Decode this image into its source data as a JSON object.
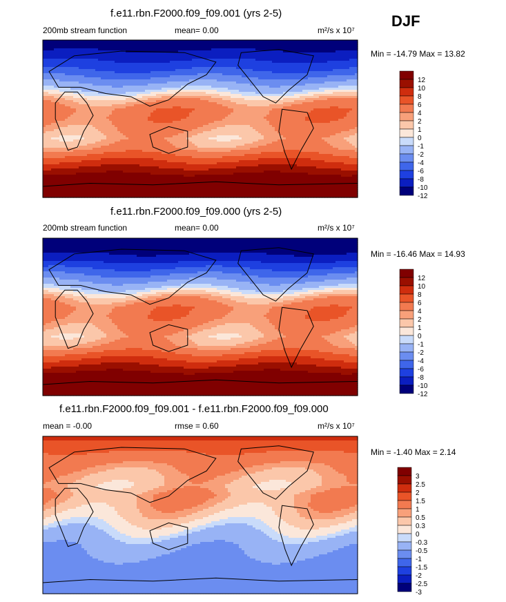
{
  "season": "DJF",
  "palettes": {
    "abs": [
      "#00007a",
      "#0b1ec0",
      "#1e40e0",
      "#3f66ea",
      "#6b8df0",
      "#98b3f5",
      "#c9dbfa",
      "#fbe7da",
      "#fbc7aa",
      "#f8a07a",
      "#f27a50",
      "#e95428",
      "#cf2d0e",
      "#9a0f00",
      "#800000"
    ],
    "diff": [
      "#00007a",
      "#0b1ec0",
      "#1e40e0",
      "#3f66ea",
      "#6b8df0",
      "#98b3f5",
      "#c9dbfa",
      "#fbe7da",
      "#fbc7aa",
      "#f8a07a",
      "#f27a50",
      "#e95428",
      "#cf2d0e",
      "#9a0f00",
      "#800000"
    ]
  },
  "chart_data": [
    {
      "type": "heatmap",
      "title": "f.e11.rbn.F2000.f09_f09.001 (yrs 2-5)",
      "left_label": "200mb stream function",
      "mean_text": "mean=   0.00",
      "units": "m²/s x 10⁷",
      "minmax_text": "Min = -14.79 Max =  13.82",
      "colorbar_labels": [
        "12",
        "10",
        "8",
        "6",
        "4",
        "2",
        "1",
        "0",
        "-1",
        "-2",
        "-4",
        "-6",
        "-8",
        "-10",
        "-12"
      ],
      "lat_profile": [
        -13,
        -12,
        -10,
        -8,
        -5,
        -2,
        1,
        3,
        3,
        2,
        1,
        2,
        5,
        8,
        11,
        13,
        14
      ]
    },
    {
      "type": "heatmap",
      "title": "f.e11.rbn.F2000.f09_f09.000 (yrs 2-5)",
      "left_label": "200mb stream function",
      "mean_text": "mean=   0.00",
      "units": "m²/s x 10⁷",
      "minmax_text": "Min = -16.46 Max =  14.93",
      "colorbar_labels": [
        "12",
        "10",
        "8",
        "6",
        "4",
        "2",
        "1",
        "0",
        "-1",
        "-2",
        "-4",
        "-6",
        "-8",
        "-10",
        "-12"
      ],
      "lat_profile": [
        -14,
        -13,
        -11,
        -8,
        -5,
        -2,
        1,
        3,
        3,
        2,
        1,
        2,
        5,
        8,
        11,
        13,
        15
      ]
    },
    {
      "type": "heatmap",
      "title": "f.e11.rbn.F2000.f09_f09.001 - f.e11.rbn.F2000.f09_f09.000",
      "left_label": "mean =  -0.00",
      "mean_text": "rmse =   0.60",
      "units": "m²/s x 10⁷",
      "minmax_text": "Min =  -1.40 Max =  2.14",
      "colorbar_labels": [
        "3",
        "2.5",
        "2",
        "1.5",
        "1",
        "0.5",
        "0.3",
        "0",
        "-0.3",
        "-0.5",
        "-1",
        "-1.5",
        "-2",
        "-2.5",
        "-3"
      ],
      "lat_profile": [
        1.6,
        1.2,
        0.8,
        0.5,
        0.3,
        0.2,
        0.4,
        0.3,
        0.1,
        -0.2,
        -0.5,
        -0.8,
        -1.0,
        -1.2,
        -1.3,
        -1.3,
        -1.2
      ]
    }
  ]
}
